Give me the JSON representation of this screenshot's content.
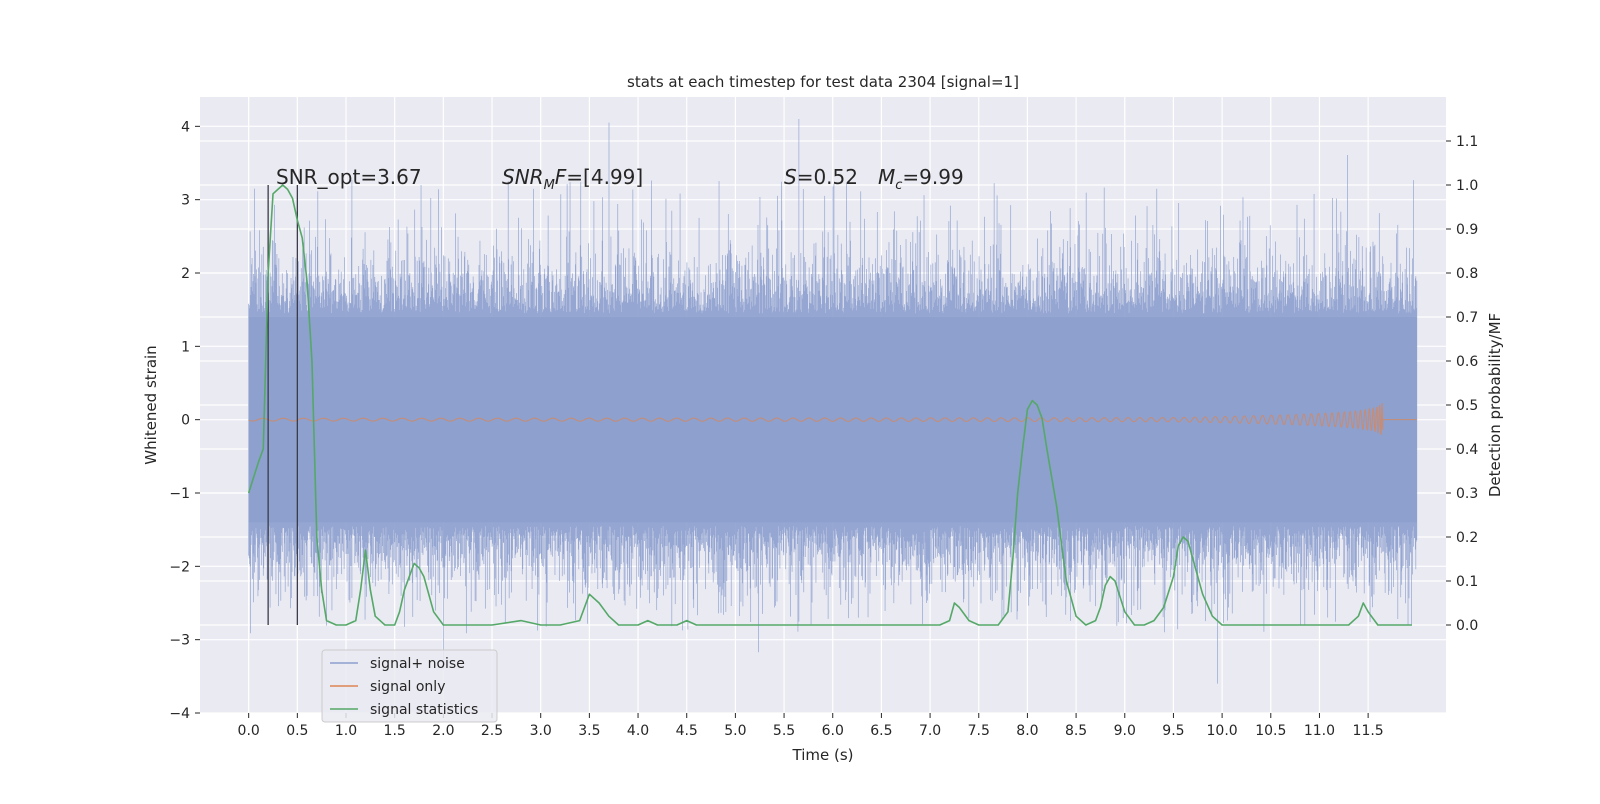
{
  "chart_data": {
    "type": "line",
    "title": "stats at each timestep for test data 2304 [signal=1]",
    "xlabel": "Time (s)",
    "ylabel": "Whitened strain",
    "ylabel_right": "Detection probability/MF",
    "xlim": [
      -0.5,
      12.3
    ],
    "ylim": [
      -4,
      4.4
    ],
    "ylim_right": [
      -0.2,
      1.2
    ],
    "x_ticks": [
      0.0,
      0.5,
      1.0,
      1.5,
      2.0,
      2.5,
      3.0,
      3.5,
      4.0,
      4.5,
      5.0,
      5.5,
      6.0,
      6.5,
      7.0,
      7.5,
      8.0,
      8.5,
      9.0,
      9.5,
      10.0,
      10.5,
      11.0,
      11.5
    ],
    "x_tick_labels": [
      "0.0",
      "0.5",
      "1.0",
      "1.5",
      "2.0",
      "2.5",
      "3.0",
      "3.5",
      "4.0",
      "4.5",
      "5.0",
      "5.5",
      "6.0",
      "6.5",
      "7.0",
      "7.5",
      "8.0",
      "8.5",
      "9.0",
      "9.5",
      "10.0",
      "10.5",
      "11.0",
      "11.5"
    ],
    "y_ticks": [
      -4,
      -3,
      -2,
      -1,
      0,
      1,
      2,
      3,
      4
    ],
    "y_tick_labels": [
      "−4",
      "−3",
      "−2",
      "−1",
      "0",
      "1",
      "2",
      "3",
      "4"
    ],
    "y_right_ticks": [
      0.0,
      0.1,
      0.2,
      0.3,
      0.4,
      0.5,
      0.6,
      0.7,
      0.8,
      0.9,
      1.0,
      1.1
    ],
    "y_right_tick_labels": [
      "0.0",
      "0.1",
      "0.2",
      "0.3",
      "0.4",
      "0.5",
      "0.6",
      "0.7",
      "0.8",
      "0.9",
      "1.0",
      "1.1"
    ],
    "grid": true,
    "legend_position": "lower-left",
    "legend": [
      {
        "label": "signal+ noise",
        "color": "#8c9fce"
      },
      {
        "label": "signal only",
        "color": "#dd8452"
      },
      {
        "label": "signal statistics",
        "color": "#55a868"
      }
    ],
    "annotations": {
      "snr_opt": "SNR_opt=3.67",
      "snr_mf_italic": "SNR",
      "snr_mf_sub": "M",
      "snr_mf_italic2": "F",
      "snr_mf_value": "=[4.99]",
      "s_italic": "S",
      "s_value": "=0.52",
      "mc_italic": "M",
      "mc_sub": "c",
      "mc_value": "=9.99"
    },
    "series": [
      {
        "name": "signal+ noise",
        "color": "#8c9fce",
        "x_range": [
          0.0,
          12.0
        ],
        "envelope_approx": {
          "typical_abs": 2.0,
          "max": 4.1,
          "min": -3.6
        }
      },
      {
        "name": "signal only",
        "color": "#dd8452",
        "x_range": [
          0.0,
          11.65
        ],
        "amplitude_growth": "chirp increasing to ~0.55 at 11.65"
      },
      {
        "name": "signal statistics",
        "color": "#55a868",
        "axis": "right",
        "x": [
          0.0,
          0.1,
          0.15,
          0.2,
          0.25,
          0.3,
          0.35,
          0.4,
          0.45,
          0.5,
          0.55,
          0.6,
          0.65,
          0.7,
          0.75,
          0.8,
          0.9,
          1.0,
          1.1,
          1.15,
          1.2,
          1.25,
          1.3,
          1.4,
          1.5,
          1.55,
          1.6,
          1.7,
          1.75,
          1.8,
          1.9,
          2.0,
          2.2,
          2.5,
          2.8,
          3.0,
          3.2,
          3.4,
          3.5,
          3.6,
          3.7,
          3.8,
          3.9,
          4.0,
          4.1,
          4.2,
          4.3,
          4.4,
          4.5,
          4.6,
          4.8,
          5.0,
          5.5,
          6.0,
          6.5,
          7.0,
          7.1,
          7.2,
          7.25,
          7.3,
          7.4,
          7.5,
          7.7,
          7.8,
          7.85,
          7.9,
          7.95,
          8.0,
          8.05,
          8.1,
          8.15,
          8.2,
          8.3,
          8.4,
          8.5,
          8.6,
          8.7,
          8.75,
          8.8,
          8.85,
          8.9,
          9.0,
          9.1,
          9.2,
          9.3,
          9.4,
          9.5,
          9.55,
          9.6,
          9.65,
          9.7,
          9.8,
          9.9,
          10.0,
          10.2,
          10.5,
          11.0,
          11.3,
          11.4,
          11.45,
          11.5,
          11.6,
          11.7,
          11.95
        ],
        "y": [
          0.3,
          0.37,
          0.4,
          0.8,
          0.98,
          0.99,
          1.0,
          0.99,
          0.97,
          0.92,
          0.88,
          0.78,
          0.6,
          0.2,
          0.08,
          0.01,
          0.0,
          0.0,
          0.01,
          0.08,
          0.17,
          0.08,
          0.02,
          0.0,
          0.0,
          0.03,
          0.08,
          0.14,
          0.13,
          0.11,
          0.03,
          0.0,
          0.0,
          0.0,
          0.01,
          0.0,
          0.0,
          0.01,
          0.07,
          0.05,
          0.02,
          0.0,
          0.0,
          0.0,
          0.01,
          0.0,
          0.0,
          0.0,
          0.01,
          0.0,
          0.0,
          0.0,
          0.0,
          0.0,
          0.0,
          0.0,
          0.0,
          0.01,
          0.05,
          0.04,
          0.01,
          0.0,
          0.0,
          0.03,
          0.15,
          0.3,
          0.4,
          0.49,
          0.51,
          0.5,
          0.47,
          0.4,
          0.27,
          0.1,
          0.02,
          0.0,
          0.01,
          0.04,
          0.09,
          0.11,
          0.1,
          0.03,
          0.0,
          0.0,
          0.01,
          0.04,
          0.11,
          0.18,
          0.2,
          0.19,
          0.15,
          0.07,
          0.02,
          0.0,
          0.0,
          0.0,
          0.0,
          0.0,
          0.02,
          0.05,
          0.03,
          0.0,
          0.0,
          0.0
        ]
      }
    ],
    "vertical_markers": {
      "x": [
        0.2,
        0.5
      ],
      "color": "#3a3a4a",
      "y_range_right": [
        0.0,
        1.0
      ]
    }
  }
}
